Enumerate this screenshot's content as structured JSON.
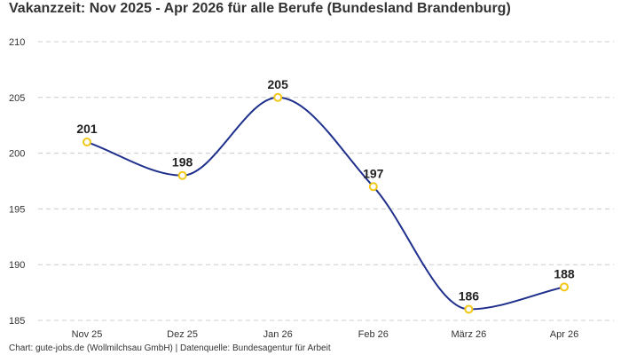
{
  "chart_data": {
    "type": "line",
    "title": "Vakanzzeit: Nov 2025 - Apr 2026 für alle Berufe (Bundesland Brandenburg)",
    "categories": [
      "Nov 25",
      "Dez 25",
      "Jan 26",
      "Feb 26",
      "März 26",
      "Apr 26"
    ],
    "series": [
      {
        "values": [
          201,
          198,
          205,
          197,
          186,
          188
        ]
      }
    ],
    "xlabel": "",
    "ylabel": "",
    "ylim": [
      185,
      210
    ],
    "yticks": [
      185,
      190,
      195,
      200,
      205,
      210
    ],
    "grid": true,
    "line_color": "#1f2f8c",
    "marker_color": "#f2c81a",
    "grid_color": "#cccccc"
  },
  "footer": {
    "source": "Chart: gute-jobs.de (Wollmilchsau GmbH) | Datenquelle: Bundesagentur für Arbeit"
  }
}
